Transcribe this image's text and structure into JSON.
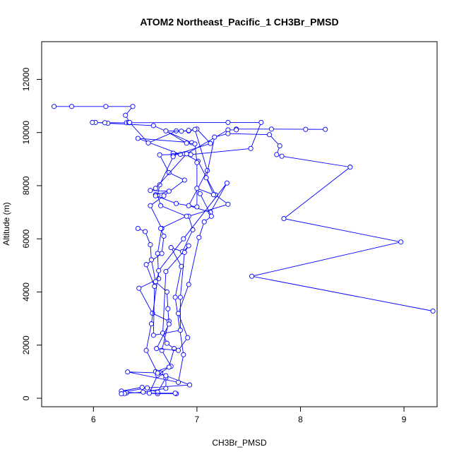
{
  "chart_data": {
    "type": "line",
    "title": "ATOM2 Northeast_Pacific_1 CH3Br_PMSD",
    "xlabel": "CH3Br_PMSD",
    "ylabel": "Altitude (m)",
    "xlim": [
      5.5,
      9.32
    ],
    "ylim": [
      -320,
      13420
    ],
    "x_ticks": [
      6,
      7,
      8,
      9
    ],
    "y_ticks": [
      0,
      2000,
      4000,
      6000,
      8000,
      10000,
      12000
    ],
    "grid": false,
    "series_color": "#0000ff",
    "series": [
      {
        "points": [
          [
            6.8,
            170
          ],
          [
            6.62,
            170
          ],
          [
            6.28,
            230
          ],
          [
            6.52,
            390
          ],
          [
            6.93,
            500
          ],
          [
            6.6,
            1000
          ],
          [
            6.75,
            1200
          ],
          [
            6.66,
            1800
          ],
          [
            6.73,
            2900
          ],
          [
            6.57,
            3200
          ],
          [
            6.44,
            4140
          ],
          [
            6.63,
            4500
          ],
          [
            6.62,
            5450
          ],
          [
            6.66,
            6390
          ],
          [
            6.55,
            7250
          ],
          [
            6.68,
            7620
          ],
          [
            6.88,
            8210
          ],
          [
            6.73,
            8490
          ],
          [
            6.64,
            9160
          ],
          [
            6.84,
            9180
          ],
          [
            6.43,
            9780
          ],
          [
            6.95,
            9620
          ],
          [
            6.58,
            10260
          ],
          [
            6.14,
            10350
          ],
          [
            6.02,
            10380
          ],
          [
            5.99,
            10380
          ],
          [
            6.11,
            10370
          ],
          [
            6.32,
            10370
          ],
          [
            6.34,
            10380
          ],
          [
            6.35,
            10370
          ],
          [
            7.3,
            10380
          ],
          [
            7.62,
            10380
          ],
          [
            7.52,
            9400
          ],
          [
            6.94,
            9170
          ],
          [
            6.77,
            9220
          ],
          [
            6.88,
            9200
          ],
          [
            7.01,
            8920
          ],
          [
            7.18,
            7650
          ],
          [
            7.3,
            7300
          ],
          [
            6.92,
            6850
          ],
          [
            6.96,
            6340
          ],
          [
            6.86,
            5520
          ],
          [
            6.75,
            5670
          ],
          [
            6.85,
            4960
          ],
          [
            6.79,
            3800
          ],
          [
            6.87,
            1640
          ],
          [
            6.82,
            600
          ],
          [
            6.33,
            990
          ],
          [
            6.65,
            950
          ],
          [
            6.7,
            770
          ],
          [
            6.62,
            230
          ],
          [
            6.47,
            410
          ],
          [
            6.27,
            270
          ],
          [
            6.32,
            200
          ]
        ]
      },
      {
        "points": [
          [
            5.62,
            10980
          ],
          [
            5.79,
            10980
          ],
          [
            6.12,
            10980
          ],
          [
            6.38,
            10980
          ],
          [
            6.31,
            10650
          ],
          [
            6.35,
            10380
          ],
          [
            6.53,
            9610
          ],
          [
            6.8,
            10060
          ],
          [
            6.92,
            10060
          ],
          [
            7.0,
            10130
          ],
          [
            7.13,
            9590
          ],
          [
            6.77,
            9130
          ],
          [
            6.77,
            9090
          ],
          [
            6.64,
            8030
          ],
          [
            6.62,
            7640
          ],
          [
            6.65,
            7250
          ],
          [
            6.9,
            6850
          ],
          [
            6.65,
            6390
          ],
          [
            6.68,
            6100
          ],
          [
            6.66,
            5450
          ],
          [
            6.51,
            5030
          ],
          [
            6.59,
            4210
          ],
          [
            6.58,
            2370
          ],
          [
            6.84,
            2560
          ],
          [
            6.84,
            3800
          ],
          [
            6.88,
            5490
          ],
          [
            6.92,
            5740
          ],
          [
            6.7,
            4770
          ],
          [
            6.67,
            2450
          ],
          [
            6.71,
            2070
          ],
          [
            6.78,
            1870
          ],
          [
            6.73,
            1170
          ],
          [
            6.62,
            870
          ],
          [
            6.54,
            190
          ],
          [
            6.79,
            190
          ]
        ]
      },
      {
        "points": [
          [
            8.05,
            10120
          ],
          [
            8.24,
            10120
          ],
          [
            7.72,
            10130
          ],
          [
            7.38,
            10130
          ],
          [
            7.38,
            10100
          ],
          [
            7.3,
            10100
          ],
          [
            6.9,
            9200
          ],
          [
            6.6,
            7900
          ],
          [
            6.55,
            7820
          ],
          [
            6.73,
            7790
          ],
          [
            6.6,
            7660
          ],
          [
            6.6,
            7620
          ],
          [
            6.8,
            7330
          ],
          [
            7.0,
            7200
          ],
          [
            7.0,
            8870
          ],
          [
            6.98,
            9570
          ],
          [
            6.9,
            9600
          ],
          [
            6.7,
            10060
          ],
          [
            6.85,
            10050
          ],
          [
            6.92,
            10080
          ],
          [
            6.98,
            10120
          ],
          [
            7.1,
            8570
          ],
          [
            6.92,
            7250
          ],
          [
            7.13,
            7000
          ],
          [
            7.29,
            8100
          ],
          [
            6.87,
            6000
          ],
          [
            6.63,
            4800
          ],
          [
            6.56,
            2800
          ],
          [
            6.51,
            1800
          ],
          [
            6.62,
            950
          ],
          [
            6.7,
            850
          ],
          [
            6.7,
            370
          ],
          [
            6.48,
            230
          ],
          [
            6.3,
            180
          ],
          [
            6.27,
            170
          ]
        ]
      },
      {
        "points": [
          [
            9.28,
            3280
          ],
          [
            7.53,
            4590
          ],
          [
            8.97,
            5880
          ],
          [
            7.84,
            6760
          ],
          [
            8.48,
            8700
          ],
          [
            7.82,
            9110
          ],
          [
            7.77,
            9170
          ],
          [
            7.8,
            9500
          ],
          [
            7.7,
            9920
          ],
          [
            7.3,
            9960
          ],
          [
            7.17,
            9830
          ],
          [
            7.09,
            8300
          ],
          [
            7.16,
            7660
          ],
          [
            7.0,
            7900
          ],
          [
            7.03,
            7700
          ],
          [
            7.14,
            6850
          ],
          [
            7.07,
            6640
          ],
          [
            7.02,
            6050
          ],
          [
            6.92,
            4280
          ],
          [
            6.82,
            3190
          ],
          [
            6.91,
            2280
          ],
          [
            6.82,
            1800
          ],
          [
            6.61,
            1870
          ],
          [
            6.73,
            2790
          ],
          [
            6.72,
            3370
          ],
          [
            6.71,
            4000
          ],
          [
            6.6,
            4390
          ],
          [
            6.56,
            5210
          ],
          [
            6.55,
            5780
          ],
          [
            6.5,
            6270
          ],
          [
            6.43,
            6390
          ]
        ]
      }
    ]
  }
}
